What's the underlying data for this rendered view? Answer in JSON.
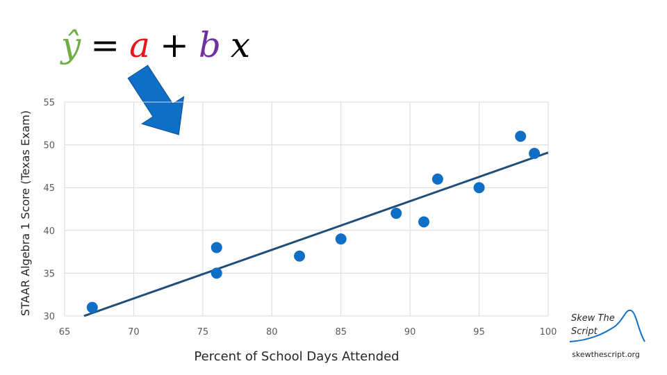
{
  "equation": {
    "parts": [
      {
        "text": "ŷ",
        "color": "#70ad47"
      },
      {
        "text": "=",
        "color": "#000000"
      },
      {
        "text": "a",
        "color": "#e8161b"
      },
      {
        "text": "+",
        "color": "#000000"
      },
      {
        "text": "b",
        "color": "#7030a0"
      },
      {
        "text": "x",
        "color": "#000000"
      }
    ]
  },
  "chart_data": {
    "type": "scatter",
    "x_label": "Percent of School Days Attended",
    "y_label": "STAAR Algebra 1 Score (Texas Exam)",
    "x": [
      67,
      76,
      76,
      82,
      85,
      89,
      91,
      92,
      95,
      98,
      99
    ],
    "series": [
      {
        "color": "#0f6fc6",
        "values": [
          31,
          38,
          35,
          37,
          39,
          42,
          41,
          46,
          45,
          51,
          49
        ]
      }
    ],
    "trend_line": {
      "color": "#1f4e79",
      "x": [
        66.4,
        100
      ],
      "y": [
        30,
        49.1
      ]
    },
    "xlim": [
      65,
      100
    ],
    "xticks": [
      65,
      70,
      75,
      80,
      85,
      90,
      95,
      100
    ],
    "ylim": [
      30,
      55
    ],
    "yticks": [
      30,
      35,
      40,
      45,
      50,
      55
    ],
    "grid": true
  },
  "logo": {
    "lines": [
      "Skew The",
      "Script"
    ],
    "url": "skewthescript.org"
  }
}
